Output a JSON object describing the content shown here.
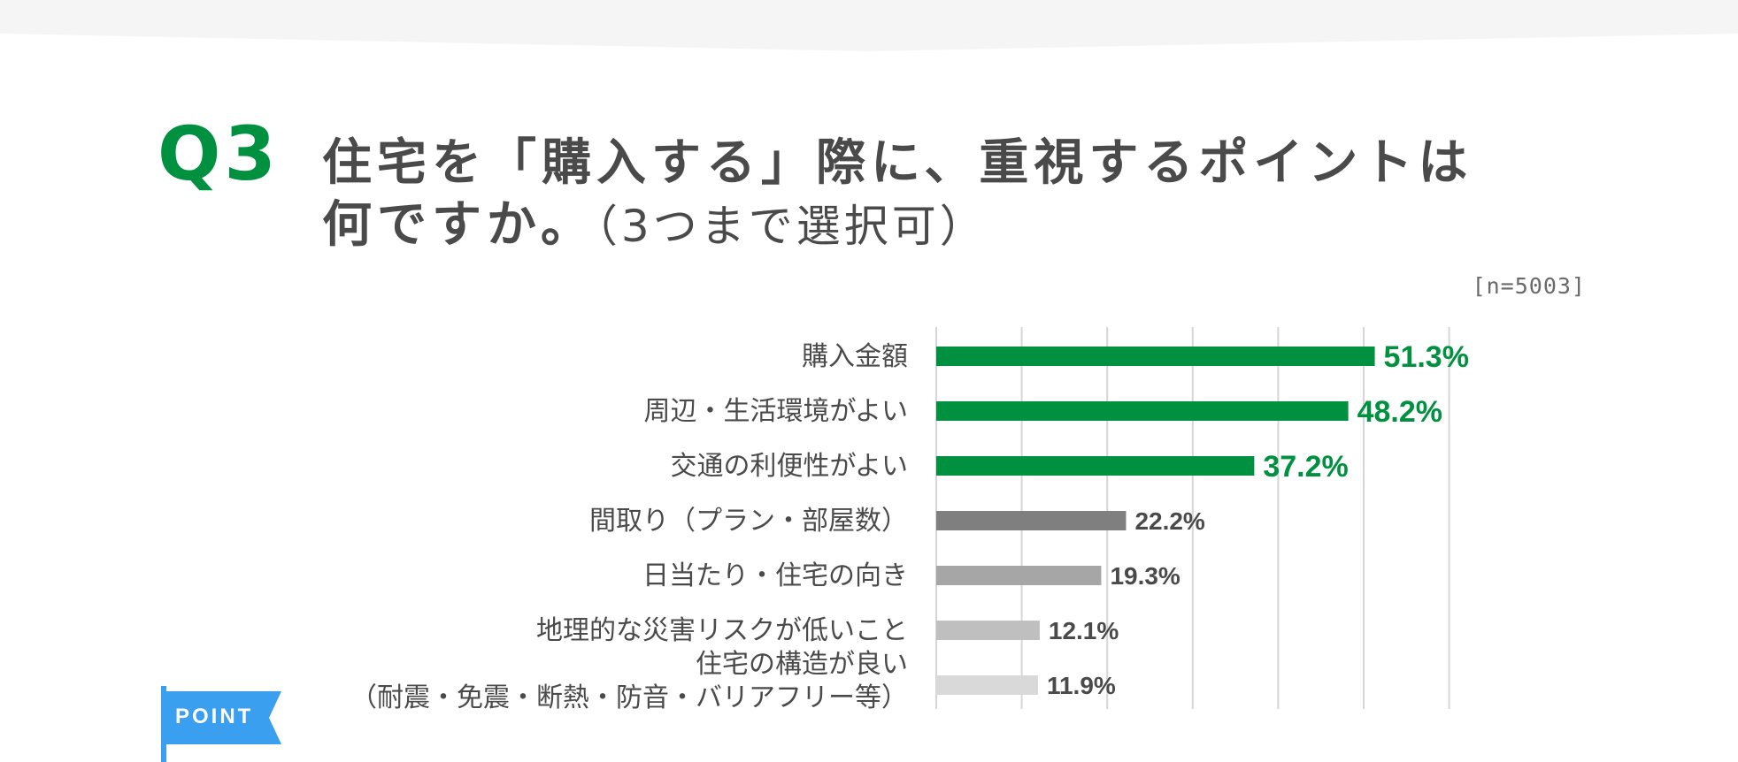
{
  "question": {
    "number": "Q3",
    "title_line1": "住宅を「購入する」際に、重視するポイントは",
    "title_line2": "何ですか。",
    "title_note": "（3つまで選択可）"
  },
  "sample_size": "[n=5003]",
  "point_badge": "POINT",
  "colors": {
    "accent": "#009140",
    "title_text": "#4a4a4a",
    "label_text": "#4a4a4a",
    "grid": "#d6d6d6",
    "point_flag": "#3b9ff0"
  },
  "chart_data": {
    "type": "bar",
    "orientation": "horizontal",
    "categories": [
      [
        "購入金額"
      ],
      [
        "周辺・生活環境がよい"
      ],
      [
        "交通の利便性がよい"
      ],
      [
        "間取り（プラン・部屋数）"
      ],
      [
        "日当たり・住宅の向き"
      ],
      [
        "地理的な災害リスクが低いこと"
      ],
      [
        "住宅の構造が良い",
        "（耐震・免震・断熱・防音・バリアフリー等）"
      ]
    ],
    "values": [
      51.3,
      48.2,
      37.2,
      22.2,
      19.3,
      12.1,
      11.9
    ],
    "value_labels": [
      "51.3%",
      "48.2%",
      "37.2%",
      "22.2%",
      "19.3%",
      "12.1%",
      "11.9%"
    ],
    "bar_colors": [
      "#009140",
      "#009140",
      "#009140",
      "#7f7f7f",
      "#a6a6a6",
      "#bfbfbf",
      "#d9d9d9"
    ],
    "label_colors": [
      "#009140",
      "#009140",
      "#009140",
      "#4a4a4a",
      "#4a4a4a",
      "#4a4a4a",
      "#4a4a4a"
    ],
    "xlim": [
      0,
      60
    ],
    "grid_step": 10,
    "grid": true
  }
}
